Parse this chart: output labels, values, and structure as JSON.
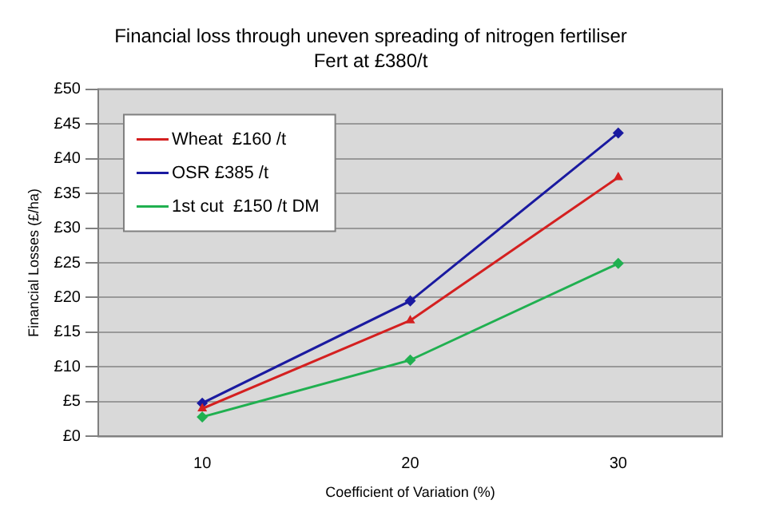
{
  "chart_data": {
    "type": "line",
    "title": "Financial loss through uneven spreading of nitrogen fertiliser",
    "subtitle": "Fert at £380/t",
    "xlabel": "Coefficient of Variation (%)",
    "ylabel": "Financial Losses (£/ha)",
    "categories": [
      "10",
      "20",
      "30"
    ],
    "series": [
      {
        "name": "Wheat  £160 /t",
        "color": "#d42020",
        "values": [
          4.0,
          16.7,
          37.3
        ],
        "marker": "triangle"
      },
      {
        "name": "OSR £385 /t",
        "color": "#1a1aa0",
        "values": [
          4.8,
          19.5,
          43.7
        ],
        "marker": "diamond"
      },
      {
        "name": "1st cut  £150 /t DM",
        "color": "#20b050",
        "values": [
          2.8,
          11.0,
          24.9
        ],
        "marker": "diamond"
      }
    ],
    "ylim": [
      0,
      50
    ],
    "yticks": [
      {
        "value": 0,
        "label": "£0"
      },
      {
        "value": 5,
        "label": "£5"
      },
      {
        "value": 10,
        "label": "£10"
      },
      {
        "value": 15,
        "label": "£15"
      },
      {
        "value": 20,
        "label": "£20"
      },
      {
        "value": 25,
        "label": "£25"
      },
      {
        "value": 30,
        "label": "£30"
      },
      {
        "value": 35,
        "label": "£35"
      },
      {
        "value": 40,
        "label": "£40"
      },
      {
        "value": 45,
        "label": "£45"
      },
      {
        "value": 50,
        "label": "£50"
      }
    ],
    "grid": "y",
    "legend": "top left",
    "line_style": "solid"
  }
}
